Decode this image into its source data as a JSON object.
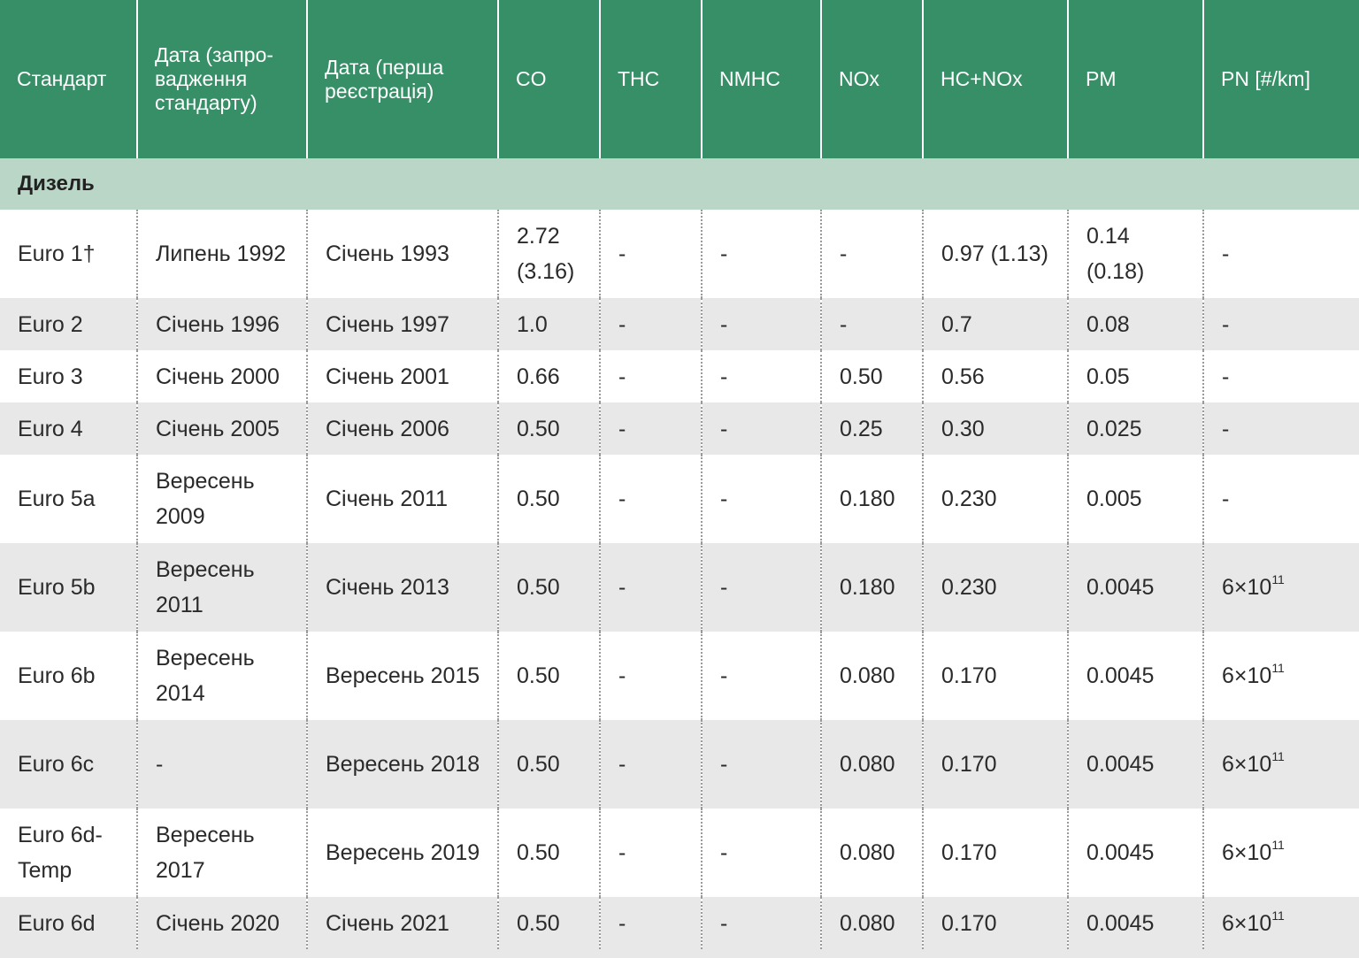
{
  "headers": [
    "Стандарт",
    "Дата (запро-вадження стандарту)",
    "Дата (перша реєстрація)",
    "CO",
    "THC",
    "NMHC",
    "NOx",
    "HC+NOx",
    "PM",
    "PN [#/km]"
  ],
  "section_label": "Дизель",
  "pn_exponent": "11",
  "rows": [
    {
      "std": "Euro 1†",
      "intro": "Липень 1992",
      "reg": "Січень 1993",
      "co": "2.72 (3.16)",
      "thc": "-",
      "nmhc": "-",
      "nox": "-",
      "hcnox": "0.97 (1.13)",
      "pm": "0.14 (0.18)",
      "pn": "-"
    },
    {
      "std": "Euro 2",
      "intro": "Січень 1996",
      "reg": "Січень 1997",
      "co": "1.0",
      "thc": "-",
      "nmhc": "-",
      "nox": "-",
      "hcnox": "0.7",
      "pm": "0.08",
      "pn": "-"
    },
    {
      "std": "Euro 3",
      "intro": "Січень 2000",
      "reg": "Січень 2001",
      "co": "0.66",
      "thc": "-",
      "nmhc": "-",
      "nox": "0.50",
      "hcnox": "0.56",
      "pm": "0.05",
      "pn": "-"
    },
    {
      "std": "Euro 4",
      "intro": "Січень 2005",
      "reg": "Січень 2006",
      "co": "0.50",
      "thc": "-",
      "nmhc": "-",
      "nox": "0.25",
      "hcnox": "0.30",
      "pm": "0.025",
      "pn": "-"
    },
    {
      "std": "Euro 5a",
      "intro": "Вересень 2009",
      "reg": "Січень 2011",
      "co": "0.50",
      "thc": "-",
      "nmhc": "-",
      "nox": "0.180",
      "hcnox": "0.230",
      "pm": "0.005",
      "pn": "-"
    },
    {
      "std": "Euro 5b",
      "intro": "Вересень 2011",
      "reg": "Січень 2013",
      "co": "0.50",
      "thc": "-",
      "nmhc": "-",
      "nox": "0.180",
      "hcnox": "0.230",
      "pm": "0.0045",
      "pn": "6×10"
    },
    {
      "std": "Euro 6b",
      "intro": "Вересень 2014",
      "reg": "Вересень 2015",
      "co": "0.50",
      "thc": "-",
      "nmhc": "-",
      "nox": "0.080",
      "hcnox": "0.170",
      "pm": "0.0045",
      "pn": "6×10"
    },
    {
      "std": "Euro 6c",
      "intro": "-",
      "reg": "Вересень 2018",
      "co": "0.50",
      "thc": "-",
      "nmhc": "-",
      "nox": "0.080",
      "hcnox": "0.170",
      "pm": "0.0045",
      "pn": "6×10"
    },
    {
      "std": "Euro 6d-Temp",
      "intro": "Вересень 2017",
      "reg": "Вересень 2019",
      "co": "0.50",
      "thc": "-",
      "nmhc": "-",
      "nox": "0.080",
      "hcnox": "0.170",
      "pm": "0.0045",
      "pn": "6×10"
    },
    {
      "std": "Euro 6d",
      "intro": "Січень 2020",
      "reg": "Січень 2021",
      "co": "0.50",
      "thc": "-",
      "nmhc": "-",
      "nox": "0.080",
      "hcnox": "0.170",
      "pm": "0.0045",
      "pn": "6×10"
    }
  ],
  "colors": {
    "header_bg": "#378f67",
    "section_bg": "#b9d6c7",
    "row_alt_bg": "#e8e8e8"
  }
}
